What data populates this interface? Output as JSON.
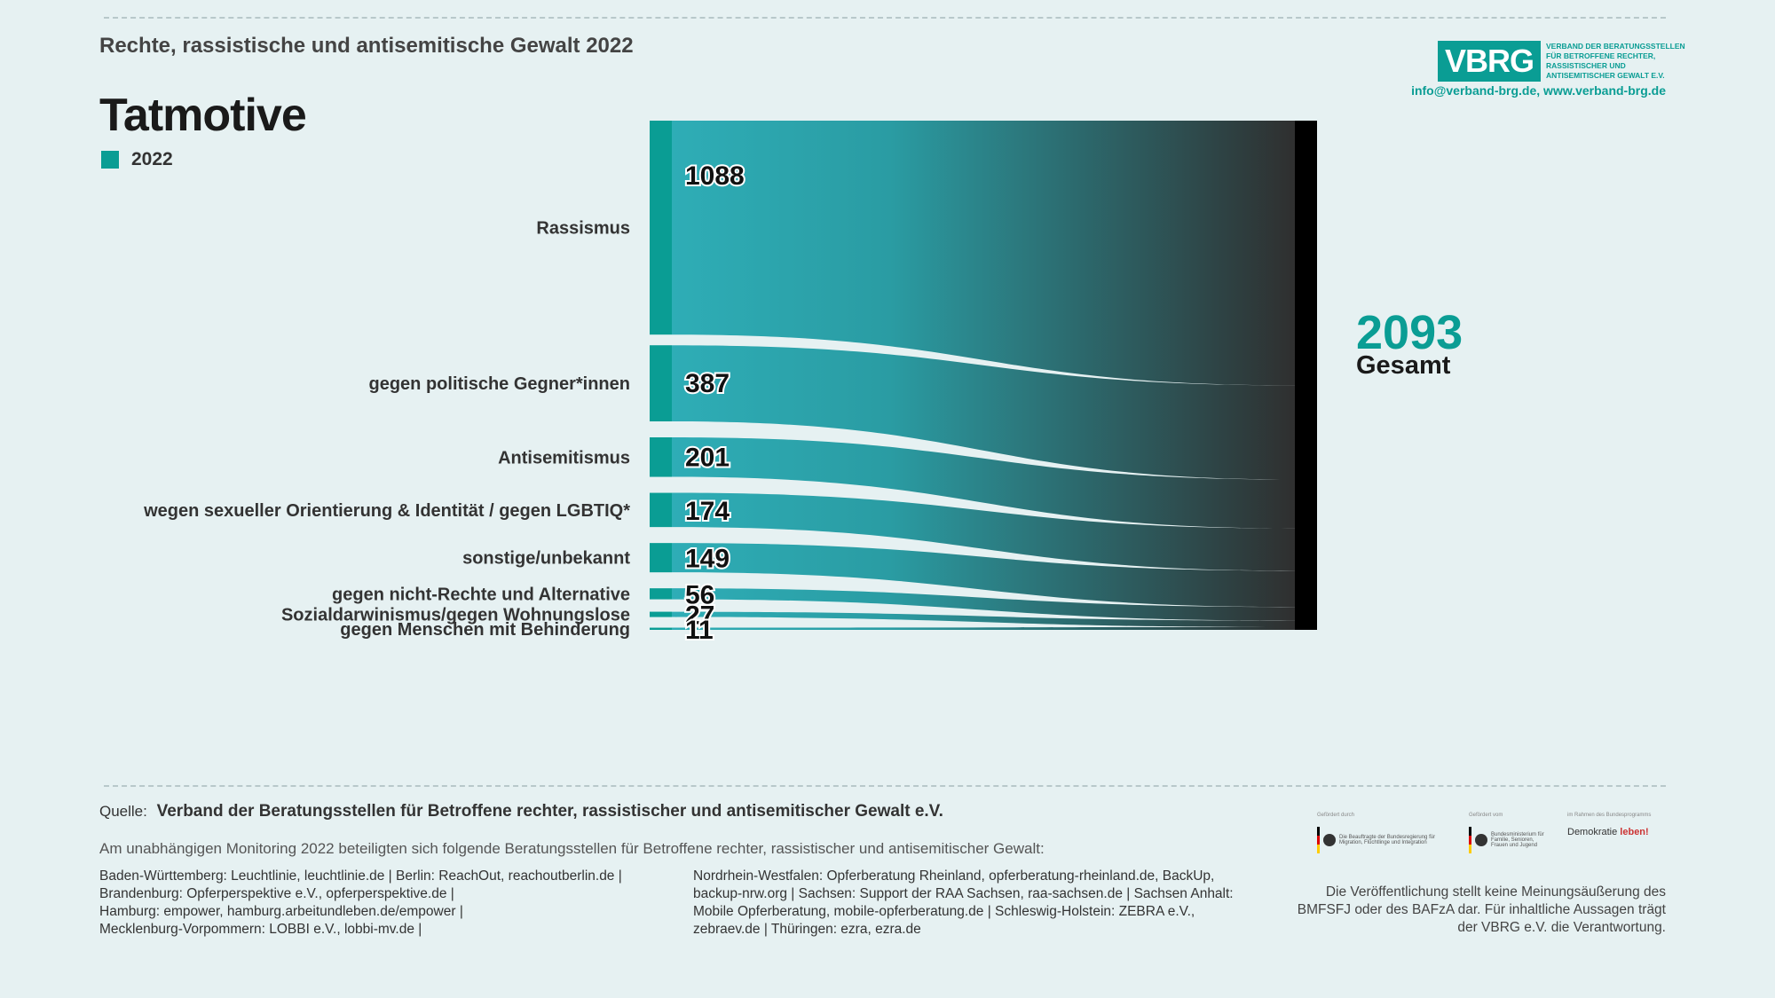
{
  "header": {
    "subtitle": "Rechte, rassistische und antisemitische Gewalt 2022",
    "title": "Tatmotive",
    "legend_label": "2022"
  },
  "logo": {
    "short": "VBRG",
    "long": "Verband der Beratungsstellen für Betroffene rechter, rassistischer und antisemitischer Gewalt e.V.",
    "contact": "info@verband-brg.de, www.verband-brg.de"
  },
  "colors": {
    "accent": "#0a9d94",
    "dark": "#2e2e2e",
    "total_bar": "#000000"
  },
  "chart_data": {
    "type": "sankey",
    "series_label": "2022",
    "categories": [
      "Rassismus",
      "gegen politische Gegner*innen",
      "Antisemitismus",
      "wegen sexueller Orientierung & Identität / gegen LGBTIQ*",
      "sonstige/unbekannt",
      "gegen nicht-Rechte und Alternative",
      "Sozialdarwinismus/gegen Wohnungslose",
      "gegen Menschen mit Behinderung"
    ],
    "values": [
      1088,
      387,
      201,
      174,
      149,
      56,
      27,
      11
    ],
    "total": 2093,
    "total_label": "Gesamt"
  },
  "total": {
    "value": "2093",
    "label": "Gesamt"
  },
  "footer": {
    "source_prefix": "Quelle:",
    "source": "Verband der Beratungsstellen für Betroffene rechter, rassistischer und antisemitischer Gewalt e.V.",
    "monitor_intro": "Am unabhängigen Monitoring 2022 beteiligten sich folgende Beratungsstellen für Betroffene rechter, rassistischer und antisemitischer Gewalt:",
    "orgs_left": "Baden-Württemberg: Leuchtlinie, leuchtlinie.de | Berlin: ReachOut, reachoutberlin.de |\nBrandenburg: Opferperspektive e.V., opferperspektive.de |\nHamburg: empower, hamburg.arbeitundleben.de/empower |\nMecklenburg-Vorpommern: LOBBI e.V., lobbi-mv.de  |",
    "orgs_right": "Nordrhein-Westfalen: Opferberatung Rheinland, opferberatung-rheinland.de, BackUp,\nbackup-nrw.org | Sachsen: Support der RAA Sachsen, raa-sachsen.de | Sachsen Anhalt:\nMobile Opferberatung, mobile-opferberatung.de | Schleswig-Holstein: ZEBRA e.V.,\nzebraev.de | Thüringen: ezra, ezra.de",
    "disclaimer": "Die Veröffentlichung stellt keine Meinungsäußerung des BMFSFJ oder des BAFzA dar. Für inhaltliche Aussagen trägt der VBRG e.V. die Verantwortung.",
    "funder_1_small": "Gefördert durch",
    "funder_1": "Die Beauftragte der Bundesregierung für Migration, Flüchtlinge und Integration",
    "funder_2_small": "Gefördert vom",
    "funder_2": "Bundesministerium für Familie, Senioren, Frauen und Jugend",
    "funder_3_small": "im Rahmen des Bundesprogramms",
    "funder_3_a": "Demokratie ",
    "funder_3_b": "leben!"
  }
}
